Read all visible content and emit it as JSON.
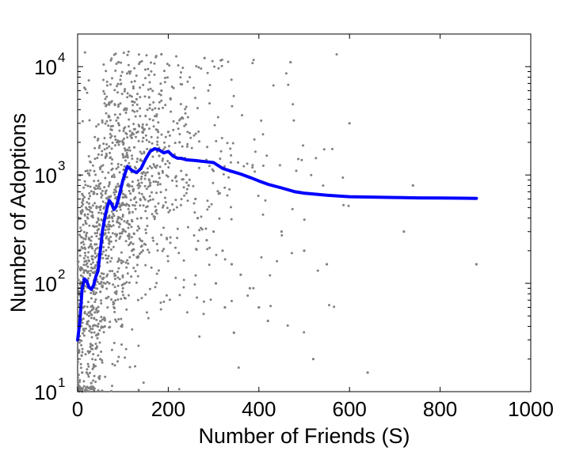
{
  "chart_data": {
    "type": "scatter",
    "title": "",
    "xlabel": "Number of Friends (S)",
    "ylabel": "Number of Adoptions",
    "xlim": [
      0,
      1000
    ],
    "ylim": [
      10,
      20000
    ],
    "yscale": "log",
    "grid": false,
    "legend": "none",
    "x_ticks": [
      {
        "value": 0,
        "label": "0"
      },
      {
        "value": 200,
        "label": "200"
      },
      {
        "value": 400,
        "label": "400"
      },
      {
        "value": 600,
        "label": "600"
      },
      {
        "value": 800,
        "label": "800"
      },
      {
        "value": 1000,
        "label": "1000"
      }
    ],
    "y_ticks": [
      {
        "value": 10,
        "base": "10",
        "exp": "1"
      },
      {
        "value": 100,
        "base": "10",
        "exp": "2"
      },
      {
        "value": 1000,
        "base": "10",
        "exp": "3"
      },
      {
        "value": 10000,
        "base": "10",
        "exp": "4"
      }
    ],
    "colors": {
      "scatter": "#808080",
      "trend": "#0000ff"
    },
    "series": [
      {
        "kind": "scatter",
        "x": [
          90,
          185,
          280,
          470,
          600,
          740,
          880,
          640,
          520,
          720,
          20,
          40,
          60,
          80,
          100,
          120,
          140,
          160,
          180,
          200,
          220,
          240,
          260,
          300,
          320,
          340,
          360,
          380,
          400,
          420,
          450,
          500,
          550,
          130,
          150,
          170,
          110,
          90,
          70,
          50,
          30,
          10,
          25,
          45,
          65,
          85,
          105,
          125,
          145,
          165,
          185,
          205,
          225,
          245,
          265,
          285,
          305,
          325,
          345
        ],
        "y": [
          11000,
          13000,
          12000,
          11000,
          3000,
          800,
          150,
          15,
          20,
          300,
          15,
          25,
          40,
          60,
          90,
          200,
          400,
          800,
          1500,
          2500,
          3000,
          1000,
          600,
          300,
          200,
          150,
          120,
          90,
          60,
          45,
          300,
          200,
          150,
          5000,
          3500,
          1200,
          800,
          3000,
          100,
          20,
          12,
          15,
          50,
          150,
          400,
          700,
          1100,
          1800,
          2200,
          4000,
          6000,
          5000,
          2000,
          800,
          400,
          250,
          100,
          60,
          35
        ],
        "note_cloud": "additional dense point cloud for S 0-350 drawn procedurally"
      },
      {
        "kind": "line",
        "x": [
          0,
          5,
          10,
          15,
          20,
          25,
          30,
          35,
          40,
          45,
          50,
          55,
          60,
          65,
          70,
          75,
          80,
          85,
          90,
          95,
          100,
          110,
          120,
          130,
          140,
          150,
          160,
          170,
          180,
          190,
          200,
          210,
          220,
          230,
          240,
          260,
          280,
          300,
          320,
          340,
          360,
          380,
          400,
          420,
          450,
          480,
          500,
          550,
          600,
          650,
          700,
          750,
          800,
          850,
          880
        ],
        "y": [
          30,
          45,
          90,
          110,
          105,
          92,
          88,
          95,
          115,
          130,
          200,
          310,
          400,
          500,
          580,
          540,
          480,
          510,
          600,
          730,
          900,
          1200,
          1100,
          1050,
          1150,
          1400,
          1650,
          1750,
          1700,
          1600,
          1650,
          1500,
          1430,
          1420,
          1380,
          1360,
          1330,
          1300,
          1150,
          1080,
          1020,
          950,
          880,
          820,
          760,
          700,
          680,
          650,
          630,
          625,
          620,
          615,
          612,
          610,
          608
        ]
      }
    ]
  }
}
